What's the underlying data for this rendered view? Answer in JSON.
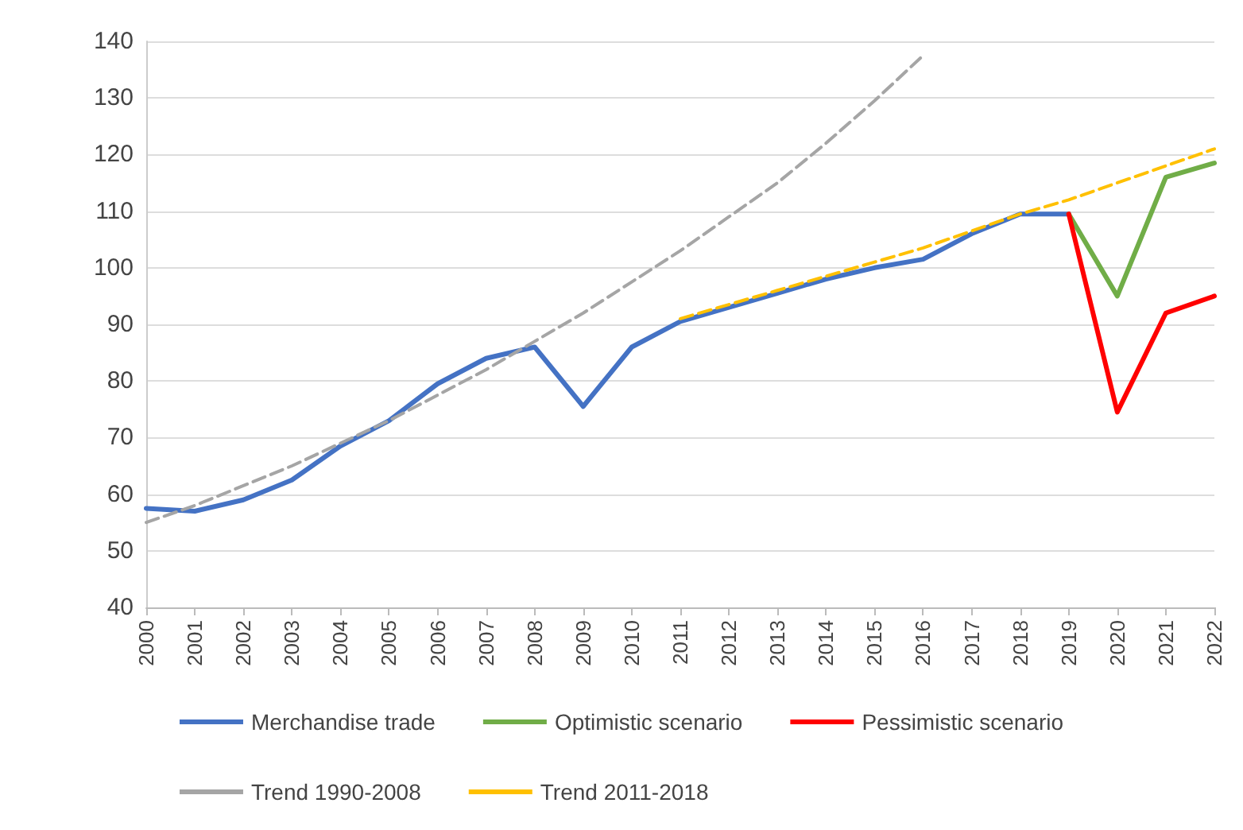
{
  "chart_data": {
    "type": "line",
    "categories": [
      "2000",
      "2001",
      "2002",
      "2003",
      "2004",
      "2005",
      "2006",
      "2007",
      "2008",
      "2009",
      "2010",
      "2011",
      "2012",
      "2013",
      "2014",
      "2015",
      "2016",
      "2017",
      "2018",
      "2019",
      "2020",
      "2021",
      "2022"
    ],
    "ylim": [
      40,
      140
    ],
    "yticks": [
      40,
      50,
      60,
      70,
      80,
      90,
      100,
      110,
      120,
      130,
      140
    ],
    "grid": "y",
    "legend": "bottom",
    "marker": "none",
    "series": [
      {
        "name": "Merchandise trade",
        "color": "#4472c4",
        "values": [
          57.5,
          57,
          59,
          62.5,
          68.5,
          73,
          79.5,
          84,
          86,
          75.5,
          86,
          90.5,
          93,
          95.5,
          98,
          100,
          101.5,
          106,
          109.5,
          109.5,
          null,
          null,
          null
        ]
      },
      {
        "name": "Optimistic scenario",
        "color": "#70ad47",
        "values": [
          null,
          null,
          null,
          null,
          null,
          null,
          null,
          null,
          null,
          null,
          null,
          null,
          null,
          null,
          null,
          null,
          null,
          null,
          null,
          109.5,
          95,
          116,
          118.5
        ]
      },
      {
        "name": "Pessimistic scenario",
        "color": "#ff0000",
        "values": [
          null,
          null,
          null,
          null,
          null,
          null,
          null,
          null,
          null,
          null,
          null,
          null,
          null,
          null,
          null,
          null,
          null,
          null,
          null,
          109.5,
          74.5,
          92,
          95
        ]
      },
      {
        "name": "Trend 1990-2008",
        "color": "#a5a5a5",
        "line_style": "dashed",
        "values": [
          55,
          58,
          61.5,
          65,
          69,
          73,
          77.5,
          82,
          87,
          92,
          97.5,
          103,
          109,
          115,
          122,
          129.5,
          137.5,
          null,
          null,
          null,
          null,
          null,
          null
        ]
      },
      {
        "name": "Trend 2011-2018",
        "color": "#ffc000",
        "line_style": "dashed",
        "values": [
          null,
          null,
          null,
          null,
          null,
          null,
          null,
          null,
          null,
          null,
          null,
          91,
          93.5,
          96,
          98.5,
          101,
          103.5,
          106.5,
          109.5,
          112,
          115,
          118,
          121
        ]
      }
    ]
  }
}
